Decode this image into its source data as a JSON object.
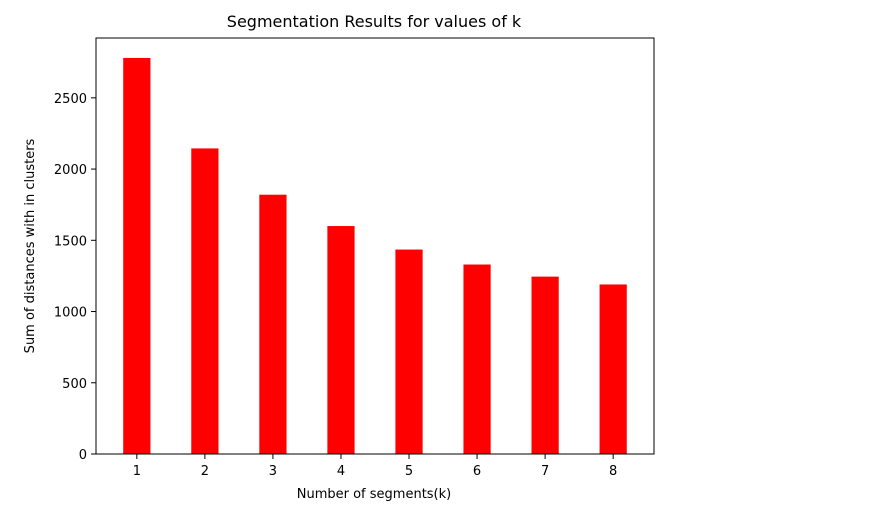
{
  "chart_data": {
    "type": "bar",
    "title": "Segmentation Results for values of k",
    "xlabel": "Number of segments(k)",
    "ylabel": "Sum of distances with in clusters",
    "categories": [
      "1",
      "2",
      "3",
      "4",
      "5",
      "6",
      "7",
      "8"
    ],
    "values": [
      2780,
      2145,
      1820,
      1600,
      1435,
      1330,
      1245,
      1190
    ],
    "ylim": [
      0,
      2920
    ],
    "yticks": [
      0,
      500,
      1000,
      1500,
      2000,
      2500
    ],
    "grid": false,
    "bar_color": "#ff0000"
  }
}
